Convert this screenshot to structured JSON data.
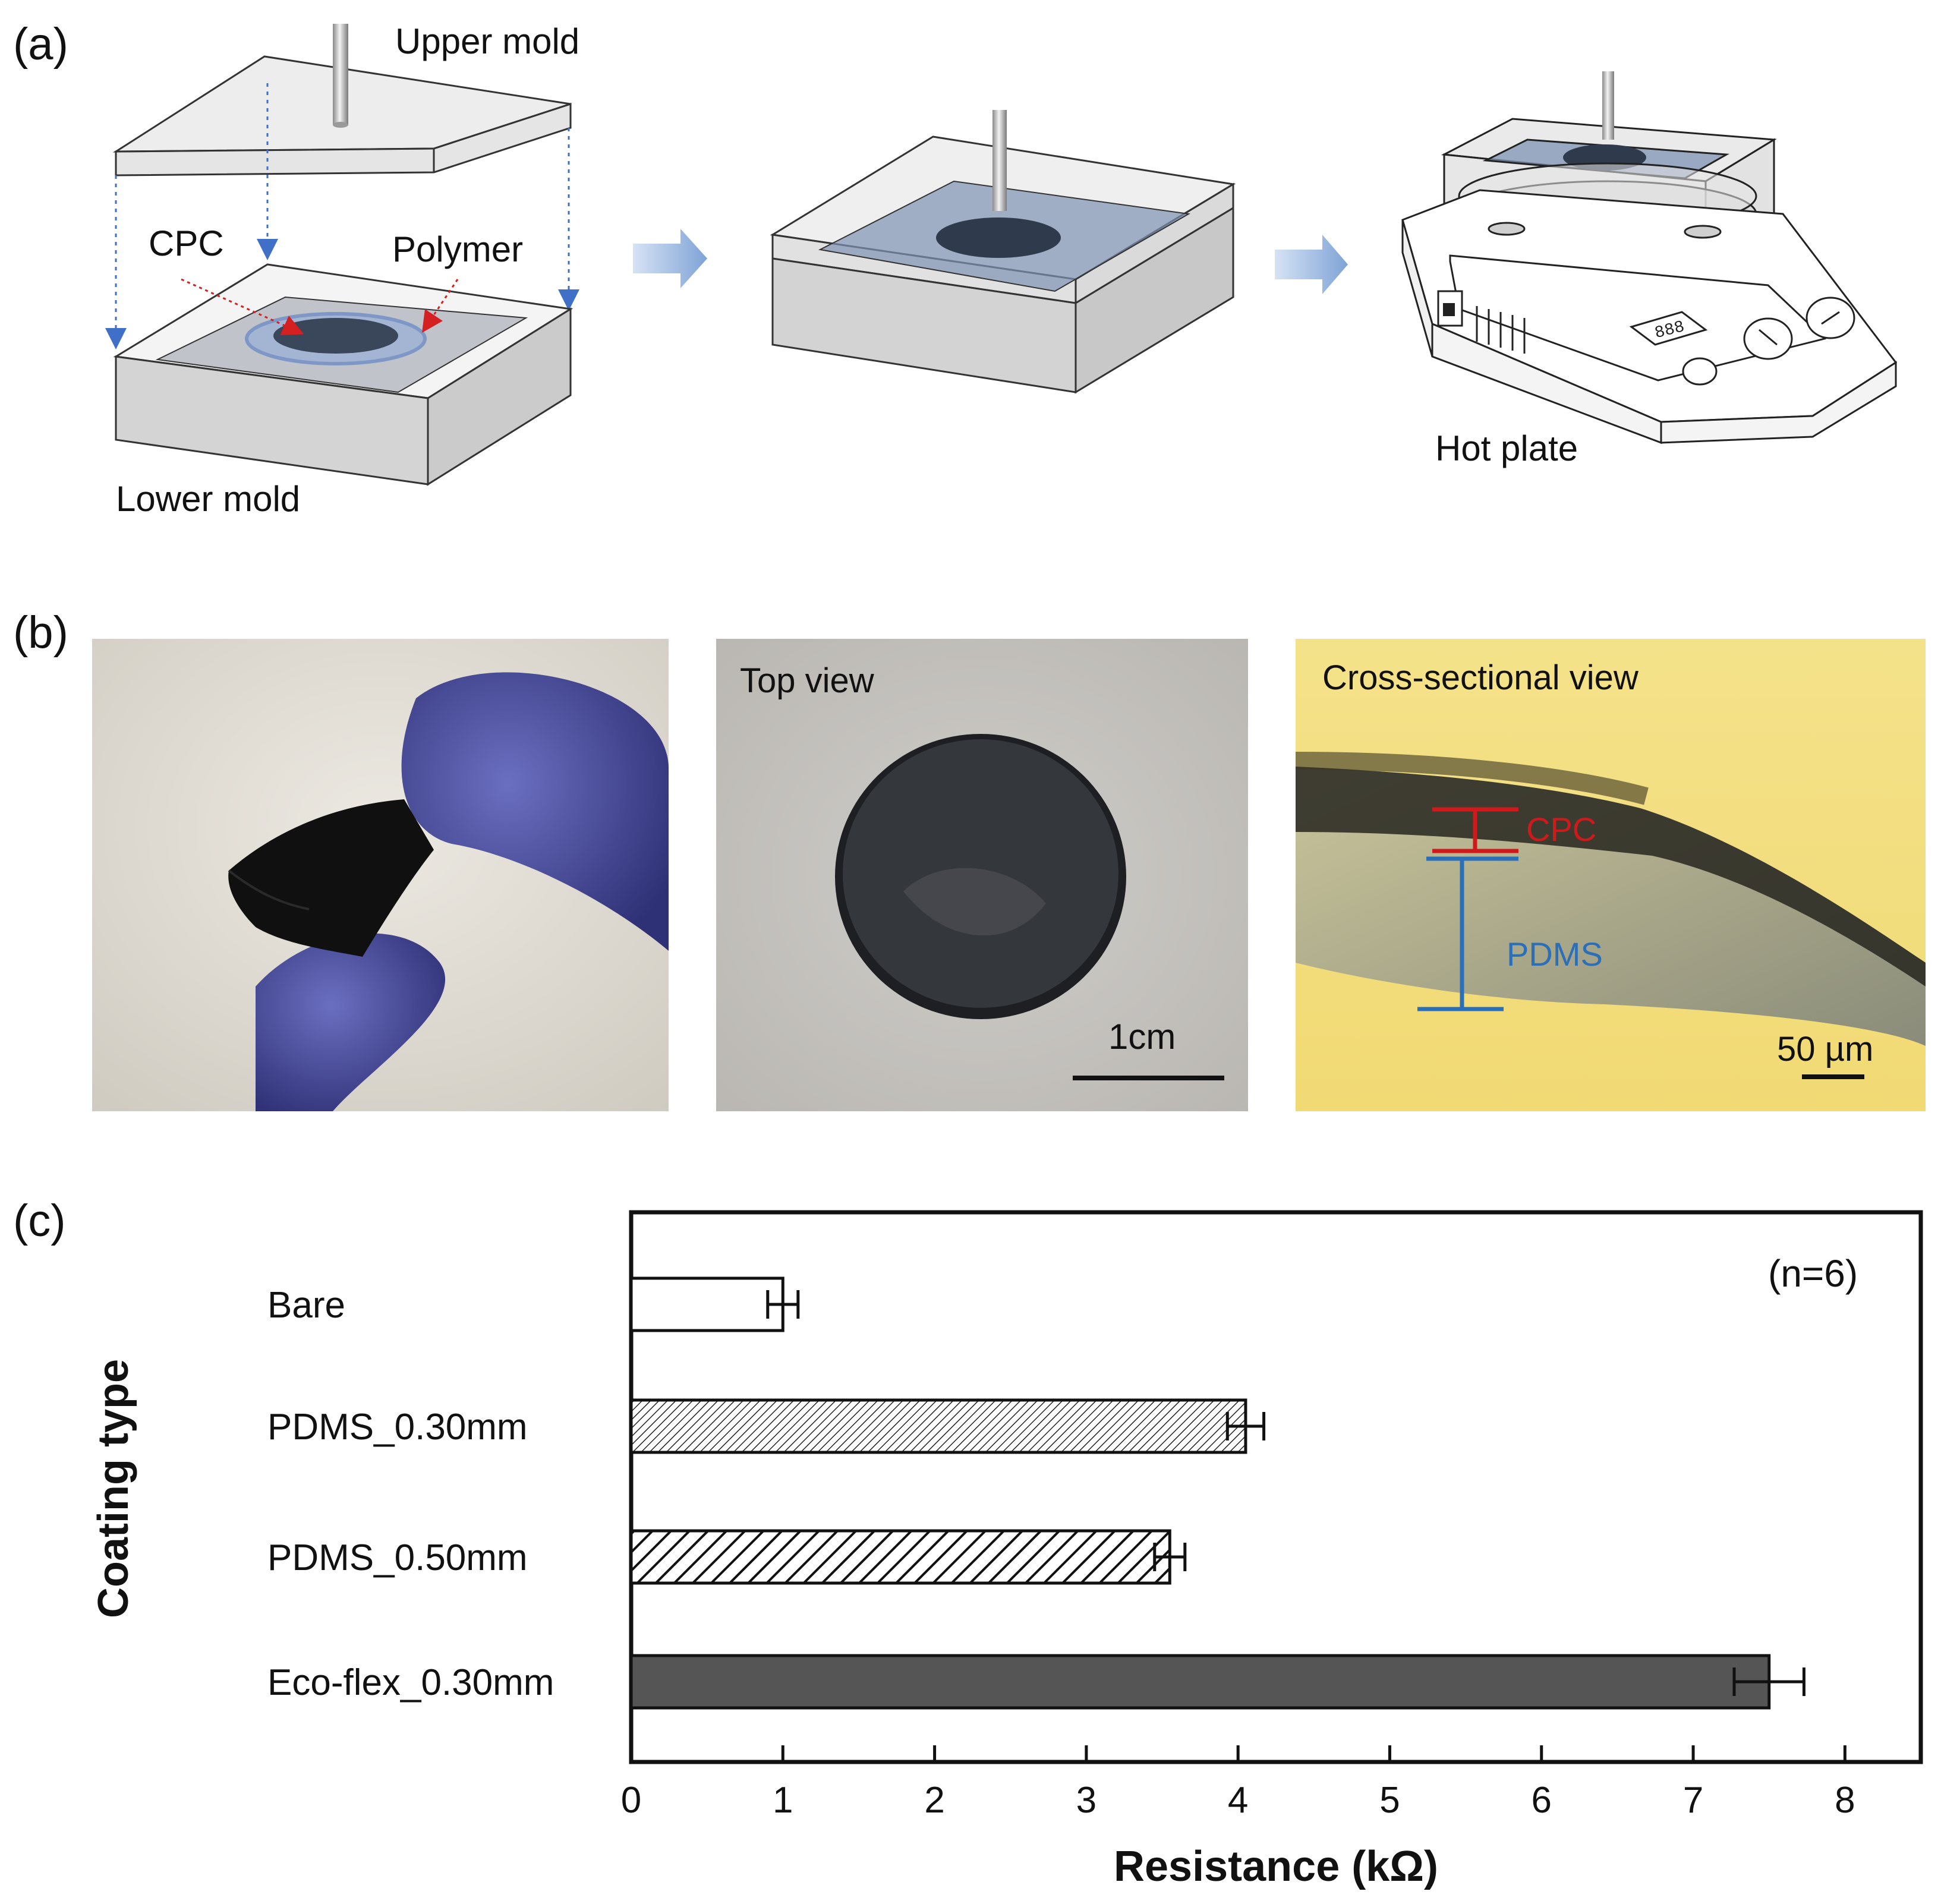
{
  "panels": {
    "a": {
      "label": "(a)",
      "upper_mold": "Upper mold",
      "cpc": "CPC",
      "polymer": "Polymer",
      "lower_mold": "Lower mold",
      "hot_plate": "Hot plate",
      "display_digits": "888"
    },
    "b": {
      "label": "(b)",
      "top_view": "Top view",
      "scale_top": "1cm",
      "cross_view": "Cross-sectional view",
      "cpc": "CPC",
      "pdms": "PDMS",
      "scale_cross": "50 µm"
    },
    "c": {
      "label": "(c)",
      "n_note": "(n=6)"
    }
  },
  "colors": {
    "cpc_red": "#d0191b",
    "pdms_blue": "#2a6fb8",
    "glove_blue": "#4a4f9a",
    "arrow_blue": "#8aaedb",
    "bar_dark": "#555555",
    "micro_yellow": "#f1dc7c"
  },
  "chart_data": {
    "type": "bar",
    "orientation": "horizontal",
    "categories": [
      "Bare",
      "PDMS_0.30mm",
      "PDMS_0.50mm",
      "Eco-flex_0.30mm"
    ],
    "values": [
      1.0,
      4.05,
      3.55,
      7.5
    ],
    "errors": [
      0.1,
      0.12,
      0.1,
      0.23
    ],
    "fills": [
      "none",
      "fine-hatch",
      "coarse-hatch",
      "solid-dark"
    ],
    "xlabel": "Resistance (kΩ)",
    "ylabel": "Coating type",
    "xlim": [
      0,
      8.5
    ],
    "xticks": [
      0,
      1,
      2,
      3,
      4,
      5,
      6,
      7,
      8
    ],
    "annotation": "(n=6)",
    "grid": false,
    "legend": "none"
  }
}
